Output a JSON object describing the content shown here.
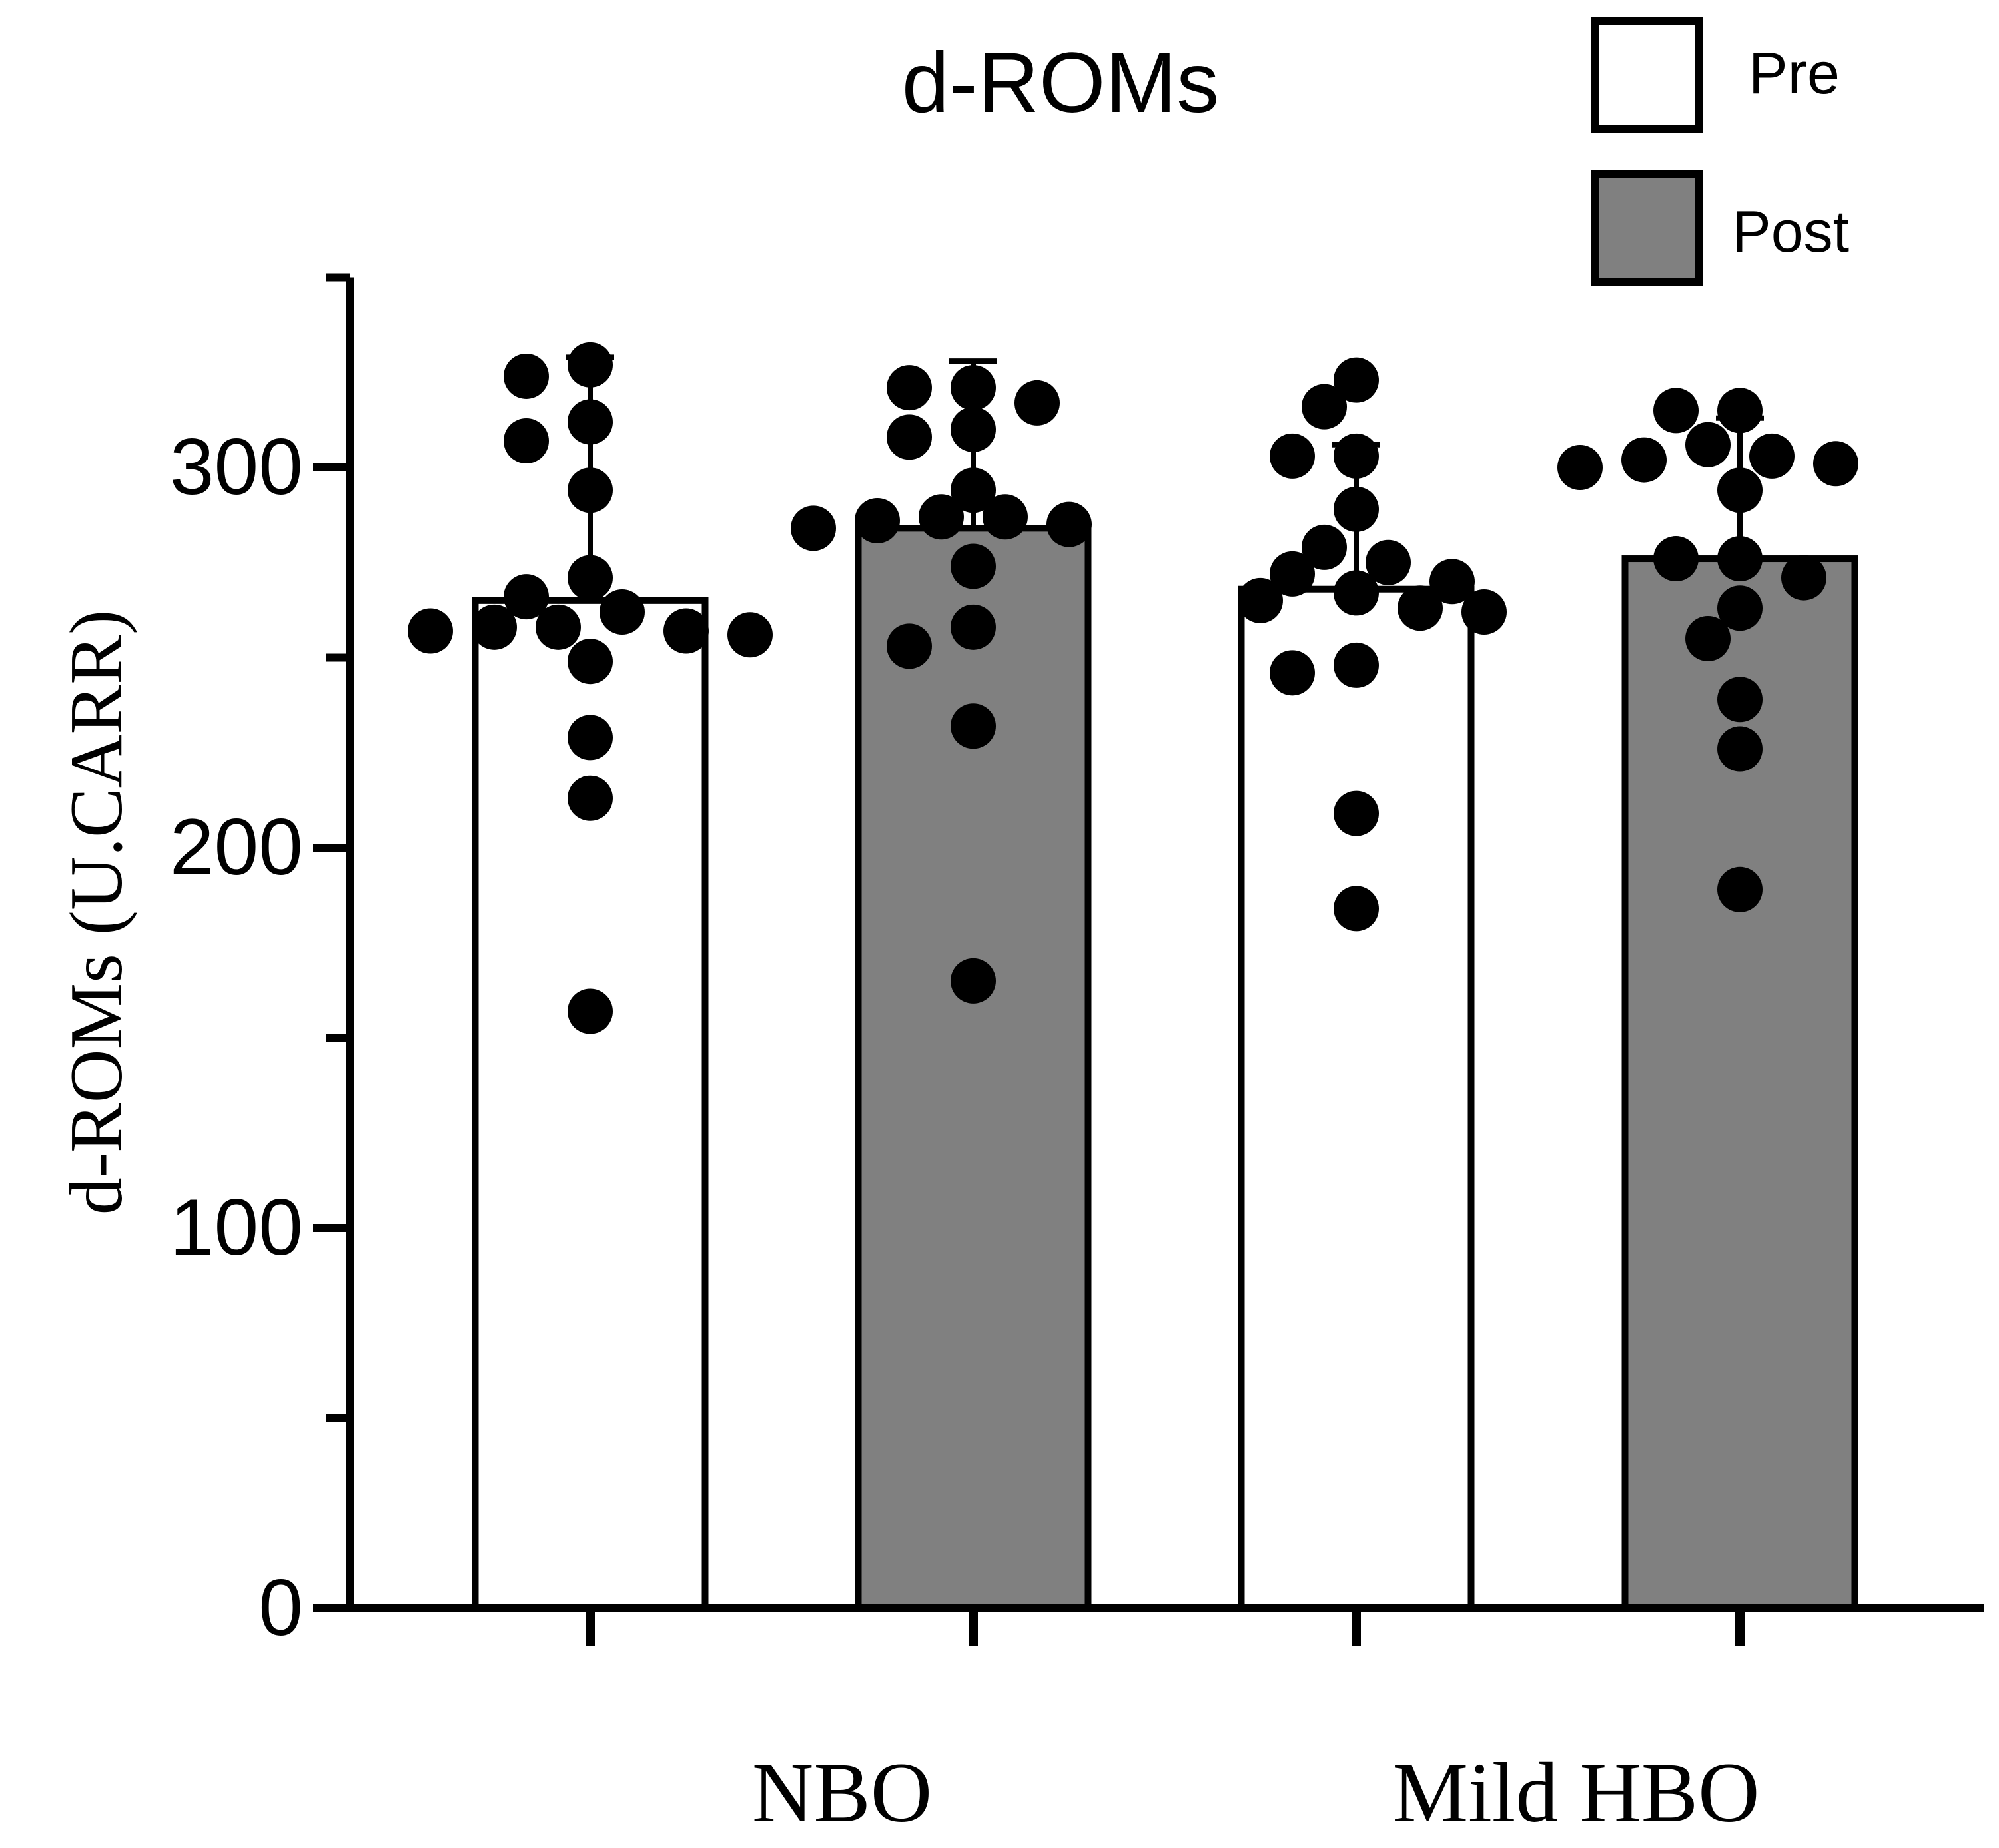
{
  "chart_data": {
    "type": "bar",
    "title": "d-ROMs",
    "xlabel": "",
    "ylabel": "d-ROMs (U.CARR)",
    "ylim": [
      0,
      350
    ],
    "yticks": [
      0,
      100,
      200,
      300
    ],
    "yticks_minor": [
      50,
      150,
      250
    ],
    "groups": [
      "NBO",
      "Mild HBO"
    ],
    "legend": {
      "position": "top-right",
      "entries": [
        {
          "name": "Pre",
          "color": "#ffffff"
        },
        {
          "name": "Post",
          "color": "#808080"
        }
      ]
    },
    "series": [
      {
        "name": "Pre",
        "color": "#ffffff",
        "values": [
          265,
          268
        ],
        "sd": [
          64,
          38
        ]
      },
      {
        "name": "Post",
        "color": "#808080",
        "values": [
          284,
          276
        ],
        "sd": [
          44,
          37
        ]
      }
    ],
    "points": [
      {
        "group": "NBO",
        "series": "Pre",
        "values": [
          271,
          266,
          262,
          258,
          256,
          257,
          249,
          257,
          258,
          229,
          213,
          157,
          294,
          312,
          307,
          327,
          324
        ]
      },
      {
        "group": "NBO",
        "series": "Post",
        "values": [
          317,
          321,
          321,
          308,
          310,
          294,
          287,
          285,
          286,
          287,
          284,
          274,
          258,
          253,
          232,
          165
        ]
      },
      {
        "group": "Mild HBO",
        "series": "Pre",
        "values": [
          316,
          323,
          303,
          303,
          289,
          279,
          275,
          272,
          270,
          267,
          265,
          263,
          262,
          248,
          246,
          209,
          184
        ]
      },
      {
        "group": "Mild HBO",
        "series": "Post",
        "values": [
          315,
          315,
          306,
          303,
          301,
          302,
          300,
          294,
          276,
          276,
          271,
          263,
          255,
          239,
          226,
          189
        ]
      }
    ]
  }
}
